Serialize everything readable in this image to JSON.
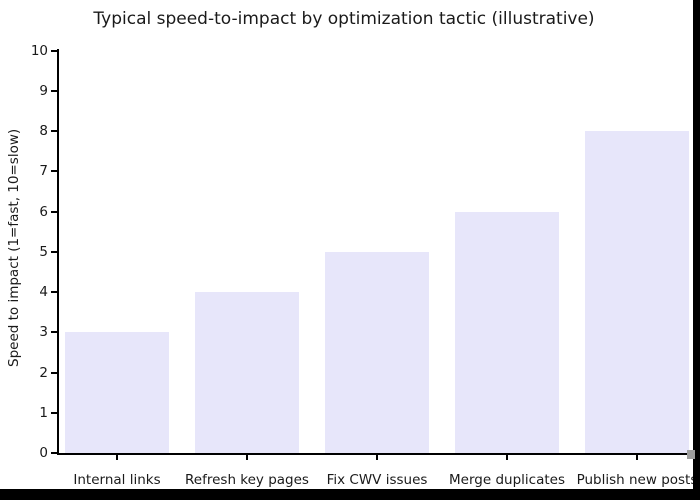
{
  "figure": {
    "background": "#ffffff",
    "frame_border_color": "#000000"
  },
  "chart_data": {
    "type": "bar",
    "title": "Typical speed-to-impact by optimization tactic (illustrative)",
    "categories": [
      "Internal links",
      "Refresh key pages",
      "Fix CWV issues",
      "Merge duplicates",
      "Publish new posts"
    ],
    "values": [
      3,
      4,
      5,
      6,
      8
    ],
    "xlabel": "",
    "ylabel": "Speed to impact (1=fast, 10=slow)",
    "ylim": [
      0,
      10
    ],
    "yticks": [
      0,
      1,
      2,
      3,
      4,
      5,
      6,
      7,
      8,
      9,
      10
    ],
    "grid": false,
    "legend_position": "none",
    "bar_color": "#e7e6fa",
    "axis_color": "#000000",
    "text_color": "#1a1a1a"
  }
}
